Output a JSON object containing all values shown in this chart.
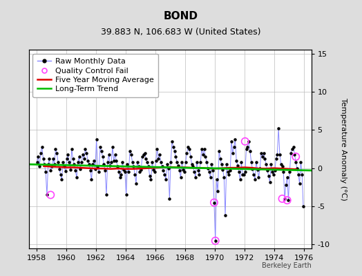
{
  "title": "BOND",
  "subtitle": "39.883 N, 106.683 W (United States)",
  "ylabel": "Temperature Anomaly (°C)",
  "credit": "Berkeley Earth",
  "xlim": [
    1957.5,
    1976.5
  ],
  "ylim": [
    -10.5,
    15.5
  ],
  "yticks": [
    -10,
    -5,
    0,
    5,
    10,
    15
  ],
  "xticks": [
    1958,
    1960,
    1962,
    1964,
    1966,
    1968,
    1970,
    1972,
    1974,
    1976
  ],
  "xtick_labels": [
    "1958",
    "1960",
    "1962",
    "1964",
    "1966",
    "1968",
    "1970",
    "1972",
    "1974",
    "1976"
  ],
  "bg_color": "#dddddd",
  "plot_bg_color": "#ffffff",
  "grid_color": "#bbbbbb",
  "raw_line_color": "#8888ff",
  "raw_marker_color": "#000000",
  "qc_marker_color": "#ff44ff",
  "moving_avg_color": "#dd0000",
  "trend_color": "#00bb00",
  "raw_data_times": [
    1958.042,
    1958.125,
    1958.208,
    1958.292,
    1958.375,
    1958.458,
    1958.542,
    1958.625,
    1958.708,
    1958.792,
    1958.875,
    1958.958,
    1959.042,
    1959.125,
    1959.208,
    1959.292,
    1959.375,
    1959.458,
    1959.542,
    1959.625,
    1959.708,
    1959.792,
    1959.875,
    1959.958,
    1960.042,
    1960.125,
    1960.208,
    1960.292,
    1960.375,
    1960.458,
    1960.542,
    1960.625,
    1960.708,
    1960.792,
    1960.875,
    1960.958,
    1961.042,
    1961.125,
    1961.208,
    1961.292,
    1961.375,
    1961.458,
    1961.542,
    1961.625,
    1961.708,
    1961.792,
    1961.875,
    1961.958,
    1962.042,
    1962.125,
    1962.208,
    1962.292,
    1962.375,
    1962.458,
    1962.542,
    1962.625,
    1962.708,
    1962.792,
    1962.875,
    1962.958,
    1963.042,
    1963.125,
    1963.208,
    1963.292,
    1963.375,
    1963.458,
    1963.542,
    1963.625,
    1963.708,
    1963.792,
    1963.875,
    1963.958,
    1964.042,
    1964.125,
    1964.208,
    1964.292,
    1964.375,
    1964.458,
    1964.542,
    1964.625,
    1964.708,
    1964.792,
    1964.875,
    1964.958,
    1965.042,
    1965.125,
    1965.208,
    1965.292,
    1965.375,
    1965.458,
    1965.542,
    1965.625,
    1965.708,
    1965.792,
    1965.875,
    1965.958,
    1966.042,
    1966.125,
    1966.208,
    1966.292,
    1966.375,
    1966.458,
    1966.542,
    1966.625,
    1966.708,
    1966.792,
    1966.875,
    1966.958,
    1967.042,
    1967.125,
    1967.208,
    1967.292,
    1967.375,
    1967.458,
    1967.542,
    1967.625,
    1967.708,
    1967.792,
    1967.875,
    1967.958,
    1968.042,
    1968.125,
    1968.208,
    1968.292,
    1968.375,
    1968.458,
    1968.542,
    1968.625,
    1968.708,
    1968.792,
    1968.875,
    1968.958,
    1969.042,
    1969.125,
    1969.208,
    1969.292,
    1969.375,
    1969.458,
    1969.542,
    1969.625,
    1969.708,
    1969.792,
    1969.875,
    1969.958,
    1970.042,
    1970.125,
    1970.208,
    1970.292,
    1970.375,
    1970.458,
    1970.542,
    1970.625,
    1970.708,
    1970.792,
    1970.875,
    1970.958,
    1971.042,
    1971.125,
    1971.208,
    1971.292,
    1971.375,
    1971.458,
    1971.542,
    1971.625,
    1971.708,
    1971.792,
    1971.875,
    1971.958,
    1972.042,
    1972.125,
    1972.208,
    1972.292,
    1972.375,
    1972.458,
    1972.542,
    1972.625,
    1972.708,
    1972.792,
    1972.875,
    1972.958,
    1973.042,
    1973.125,
    1973.208,
    1973.292,
    1973.375,
    1973.458,
    1973.542,
    1973.625,
    1973.708,
    1973.792,
    1973.875,
    1973.958,
    1974.042,
    1974.125,
    1974.208,
    1974.292,
    1974.375,
    1974.458,
    1974.542,
    1974.625,
    1974.708,
    1974.792,
    1974.875,
    1974.958,
    1975.042,
    1975.125,
    1975.208,
    1975.292,
    1975.375,
    1975.458,
    1975.542,
    1975.625,
    1975.708,
    1975.792,
    1975.875,
    1975.958
  ],
  "raw_data_values": [
    0.8,
    1.5,
    0.2,
    2.0,
    2.8,
    1.2,
    0.5,
    -0.5,
    -3.5,
    0.5,
    1.2,
    -0.3,
    0.2,
    1.2,
    0.5,
    2.5,
    2.0,
    0.8,
    -0.1,
    -0.8,
    -1.5,
    0.8,
    0.2,
    -0.4,
    1.2,
    1.8,
    0.8,
    -0.2,
    2.5,
    1.2,
    0.5,
    -0.3,
    -1.2,
    0.8,
    1.5,
    -0.1,
    0.8,
    1.8,
    1.2,
    2.5,
    2.0,
    1.0,
    0.5,
    -0.3,
    -1.5,
    0.5,
    1.0,
    -0.1,
    3.8,
    0.2,
    -0.5,
    2.8,
    2.2,
    1.5,
    0.5,
    -0.3,
    -3.5,
    0.8,
    1.8,
    0.3,
    0.8,
    2.8,
    1.0,
    1.8,
    1.0,
    0.2,
    -0.5,
    -1.2,
    -0.8,
    0.8,
    -0.2,
    -0.5,
    -3.5,
    0.5,
    -0.5,
    2.2,
    1.8,
    0.8,
    0.2,
    -0.8,
    -2.0,
    0.8,
    0.2,
    -0.5,
    -0.2,
    1.5,
    1.8,
    2.0,
    1.2,
    0.8,
    0.2,
    -1.0,
    -1.5,
    0.8,
    -0.2,
    -0.5,
    1.0,
    2.5,
    1.2,
    1.8,
    0.8,
    0.2,
    -0.3,
    -0.8,
    -1.5,
    0.5,
    0.0,
    -4.0,
    0.8,
    3.5,
    2.8,
    2.2,
    1.5,
    0.8,
    0.3,
    -0.3,
    -1.2,
    0.8,
    -0.2,
    -0.5,
    0.8,
    2.0,
    2.8,
    2.5,
    1.5,
    0.5,
    0.2,
    -0.5,
    -1.2,
    0.8,
    -0.3,
    -0.8,
    0.8,
    2.5,
    1.8,
    2.5,
    1.5,
    0.8,
    0.0,
    -0.5,
    -1.2,
    0.5,
    -0.3,
    -4.5,
    -9.5,
    -1.5,
    -3.0,
    2.2,
    1.2,
    0.5,
    -0.2,
    -1.2,
    -6.2,
    0.5,
    -0.5,
    -0.8,
    -0.3,
    3.5,
    2.0,
    2.8,
    3.8,
    1.0,
    0.3,
    -0.5,
    -1.5,
    0.8,
    -0.8,
    -0.8,
    -0.5,
    2.5,
    2.8,
    3.5,
    2.2,
    0.8,
    -0.1,
    -0.8,
    -1.5,
    0.8,
    -0.2,
    -1.2,
    0.0,
    2.0,
    1.5,
    2.0,
    1.2,
    0.5,
    -0.3,
    -1.0,
    -1.8,
    0.5,
    -0.5,
    -0.8,
    -0.3,
    1.2,
    1.8,
    5.2,
    1.8,
    0.5,
    0.2,
    -0.5,
    -4.0,
    -2.2,
    -1.2,
    -4.2,
    -0.5,
    2.0,
    2.5,
    2.8,
    1.8,
    0.8,
    0.0,
    -0.8,
    -2.0,
    0.8,
    -0.8,
    -5.0
  ],
  "qc_times": [
    1958.958,
    1969.958,
    1970.042,
    1972.042,
    1974.542,
    1974.875,
    1975.458
  ],
  "qc_values": [
    -3.5,
    -4.5,
    -9.5,
    3.5,
    -4.0,
    -4.2,
    1.5
  ],
  "moving_avg_times": [
    1958.5,
    1959.0,
    1959.5,
    1960.0,
    1960.5,
    1961.0,
    1961.5,
    1962.0,
    1962.5,
    1963.0,
    1963.5,
    1964.0,
    1964.5,
    1965.0,
    1965.5,
    1966.0,
    1966.5,
    1967.0,
    1967.5,
    1968.0,
    1968.5,
    1969.0,
    1969.5,
    1970.0,
    1970.5,
    1971.0,
    1971.5,
    1972.0,
    1972.5,
    1973.0,
    1973.5,
    1974.0,
    1974.5,
    1975.0,
    1975.5
  ],
  "moving_avg_values": [
    0.25,
    0.2,
    0.15,
    0.1,
    0.1,
    0.05,
    0.0,
    -0.05,
    -0.05,
    -0.1,
    -0.05,
    -0.1,
    -0.1,
    -0.05,
    0.0,
    0.05,
    0.1,
    0.15,
    0.1,
    0.1,
    0.05,
    0.05,
    0.0,
    -0.05,
    0.0,
    0.05,
    0.05,
    0.1,
    0.05,
    -0.05,
    -0.05,
    0.0,
    -0.05,
    -0.1,
    -0.15
  ],
  "trend_times": [
    1957.5,
    1976.5
  ],
  "trend_values": [
    0.5,
    -0.3
  ],
  "title_fontsize": 11,
  "subtitle_fontsize": 9,
  "tick_fontsize": 8,
  "ylabel_fontsize": 8,
  "legend_fontsize": 8,
  "credit_fontsize": 7
}
